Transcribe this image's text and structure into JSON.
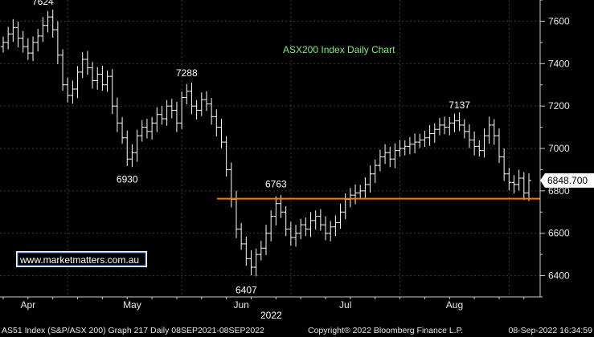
{
  "chart_data": {
    "type": "ohlc",
    "title": "ASX200 Index Daily Chart",
    "ylim": [
      6300,
      7700
    ],
    "yticks": [
      6400,
      6600,
      6800,
      7000,
      7200,
      7400,
      7600
    ],
    "xticks": [
      {
        "label": "Apr",
        "index": 5
      },
      {
        "label": "May",
        "index": 26
      },
      {
        "label": "Jun",
        "index": 48
      },
      {
        "label": "Jul",
        "index": 69
      },
      {
        "label": "Aug",
        "index": 91
      }
    ],
    "year_label": "2022",
    "support_level": 6763,
    "support_color": "#ff7a00",
    "last_price": "6848.700",
    "annotations": [
      {
        "text": "7624",
        "index": 8,
        "value": 7624,
        "where": "above"
      },
      {
        "text": "7288",
        "index": 37,
        "value": 7288,
        "where": "above"
      },
      {
        "text": "6930",
        "index": 25,
        "value": 6930,
        "where": "below"
      },
      {
        "text": "6763",
        "index": 55,
        "value": 6763,
        "where": "above"
      },
      {
        "text": "6407",
        "index": 49,
        "value": 6407,
        "where": "below"
      },
      {
        "text": "7137",
        "index": 92,
        "value": 7137,
        "where": "above"
      }
    ],
    "closes": [
      7500,
      7540,
      7570,
      7520,
      7480,
      7450,
      7500,
      7530,
      7580,
      7620,
      7560,
      7440,
      7300,
      7250,
      7280,
      7360,
      7420,
      7380,
      7320,
      7350,
      7300,
      7340,
      7200,
      7120,
      7050,
      6950,
      6980,
      7060,
      7100,
      7080,
      7120,
      7160,
      7140,
      7200,
      7180,
      7120,
      7240,
      7270,
      7200,
      7180,
      7230,
      7210,
      7150,
      7100,
      7030,
      6900,
      6760,
      6620,
      6550,
      6480,
      6440,
      6500,
      6530,
      6600,
      6680,
      6740,
      6700,
      6620,
      6580,
      6600,
      6640,
      6620,
      6660,
      6680,
      6640,
      6600,
      6630,
      6650,
      6700,
      6760,
      6780,
      6790,
      6800,
      6830,
      6880,
      6920,
      6960,
      6980,
      6950,
      6990,
      7000,
      7010,
      7020,
      7030,
      7040,
      7050,
      7070,
      7090,
      7110,
      7100,
      7120,
      7130,
      7110,
      7080,
      7040,
      7010,
      6990,
      7060,
      7110,
      7060,
      6960,
      6880,
      6840,
      6830,
      6860,
      6790,
      6849
    ],
    "series_color": "#ffffff"
  },
  "footer": {
    "left": "AS51 Index (S&P/ASX 200) Graph 217  Daily 08SEP2021-08SEP2022",
    "center": "Copyright® 2022 Bloomberg Finance L.P.",
    "right": "08-Sep-2022 16:34:59"
  },
  "watermark": "www.marketmatters.com.au"
}
